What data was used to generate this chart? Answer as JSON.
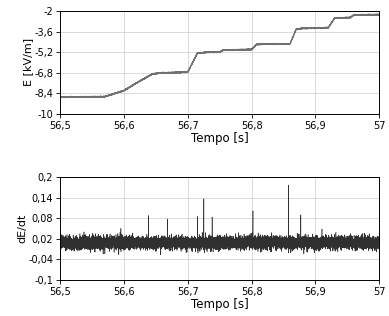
{
  "top_plot": {
    "ylabel": "E [kV/m]",
    "xlabel": "Tempo [s]",
    "xlim": [
      56.5,
      57.0
    ],
    "ylim": [
      -10,
      -2
    ],
    "yticks": [
      -10,
      -8.4,
      -6.8,
      -5.2,
      -3.6,
      -2
    ],
    "ytick_labels": [
      "-10",
      "-8,4",
      "-6,8",
      "-5,2",
      "-3,6",
      "-2"
    ],
    "xticks": [
      56.5,
      56.6,
      56.7,
      56.8,
      56.9,
      57.0
    ],
    "xtick_labels": [
      "56,5",
      "56,6",
      "56,7",
      "56,8",
      "56,9",
      "57"
    ],
    "line_color": "#707070",
    "line_width": 0.9
  },
  "bottom_plot": {
    "ylabel": "dE/dt",
    "xlabel": "Tempo [s]",
    "xlim": [
      56.5,
      57.0
    ],
    "ylim": [
      -0.1,
      0.2
    ],
    "yticks": [
      -0.1,
      -0.04,
      0.02,
      0.08,
      0.14,
      0.2
    ],
    "ytick_labels": [
      "-0,1",
      "-0,04",
      "0,02",
      "0,08",
      "0,14",
      "0,2"
    ],
    "xticks": [
      56.5,
      56.6,
      56.7,
      56.8,
      56.9,
      57.0
    ],
    "xtick_labels": [
      "56,5",
      "56,6",
      "56,7",
      "56,8",
      "56,9",
      "57"
    ],
    "line_color": "#303030",
    "line_width": 0.4,
    "noise_std": 0.009,
    "noise_mean": 0.008,
    "spike_times": [
      56.595,
      56.638,
      56.668,
      56.715,
      56.725,
      56.738,
      56.802,
      56.858,
      56.877,
      56.932
    ],
    "spike_heights": [
      0.045,
      0.07,
      0.065,
      0.065,
      0.13,
      0.065,
      0.095,
      0.175,
      0.08,
      0.038
    ]
  },
  "figure": {
    "bg_color": "#ffffff",
    "figsize": [
      3.89,
      3.16
    ],
    "dpi": 100
  }
}
